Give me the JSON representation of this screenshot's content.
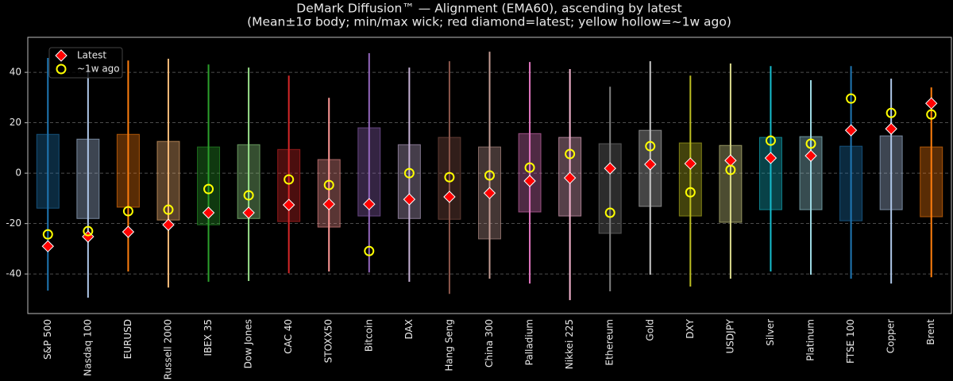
{
  "chart_data": {
    "type": "box",
    "title": "DeMark Diffusion™ — Alignment (EMA60), ascending by latest",
    "subtitle": "(Mean±1σ body; min/max wick; red diamond=latest; yellow hollow=~1w ago)",
    "categories": [
      "S&P 500",
      "Nasdaq 100",
      "EURUSD",
      "Russell 2000",
      "IBEX 35",
      "Dow Jones",
      "CAC 40",
      "STOXX50",
      "Bitcoin",
      "DAX",
      "Hang Seng",
      "China 300",
      "Palladium",
      "Nikkei 225",
      "Ethereum",
      "Gold",
      "DXY",
      "USDJPY",
      "Silver",
      "Platinum",
      "FTSE 100",
      "Copper",
      "Brent"
    ],
    "colors": [
      "#1f77b4",
      "#aec7e8",
      "#ff7f0e",
      "#ffbb78",
      "#2ca02c",
      "#98df8a",
      "#d62728",
      "#ff9896",
      "#9467bd",
      "#c5b0d5",
      "#8c564b",
      "#c49c94",
      "#e377c2",
      "#f7b6d2",
      "#7f7f7f",
      "#c7c7c7",
      "#bcbd22",
      "#dbdb8d",
      "#17becf",
      "#9edae5",
      "#1f77b4",
      "#aec7e8",
      "#ff7f0e"
    ],
    "body_high": [
      15.4,
      13.5,
      15.4,
      12.6,
      10.4,
      11.3,
      9.4,
      5.4,
      18,
      11.3,
      14.2,
      10.4,
      15.7,
      14.2,
      11.7,
      17,
      12,
      11,
      14.2,
      14.5,
      10.7,
      14.8,
      10.4
    ],
    "body_low": [
      -13.9,
      -18,
      -13.5,
      -18.6,
      -20.5,
      -18,
      -19.2,
      -21.4,
      -17,
      -18,
      -18.3,
      -26.1,
      -15.4,
      -17,
      -23.9,
      -13.2,
      -17,
      -19.5,
      -14.5,
      -14.5,
      -18.9,
      -14.5,
      -17.3
    ],
    "max": [
      45.7,
      41.3,
      44.7,
      45.4,
      43.1,
      41.9,
      38.7,
      29.9,
      47.6,
      41.9,
      44.4,
      48.2,
      44.1,
      41.3,
      34.3,
      44.4,
      38.7,
      43.5,
      42.5,
      36.9,
      42.5,
      37.5,
      34
    ],
    "min": [
      -46.6,
      -49.4,
      -39,
      -45.4,
      -43.1,
      -42.8,
      -39.7,
      -39,
      -39.4,
      -43.1,
      -47.9,
      -41.9,
      -43.8,
      -50.4,
      -46.9,
      -40.3,
      -45,
      -41.9,
      -39,
      -40.3,
      -41.9,
      -43.8,
      -41.3
    ],
    "series": [
      {
        "name": "Latest",
        "color": "#ff0000",
        "values": [
          -29,
          -25.2,
          -23.3,
          -20.5,
          -15.7,
          -15.7,
          -12.6,
          -12.3,
          -12.3,
          -10.4,
          -9.4,
          -7.9,
          -3.1,
          -1.9,
          1.9,
          3.5,
          3.8,
          5,
          6,
          6.9,
          17,
          17.6,
          27.7
        ]
      },
      {
        "name": "~1w ago",
        "color": "#ffff00",
        "values": [
          -24.3,
          -23,
          -15.1,
          -14.5,
          -6.3,
          -8.8,
          -2.5,
          -4.7,
          -30.9,
          0,
          -1.6,
          -0.9,
          2.2,
          7.6,
          -15.7,
          10.7,
          -7.6,
          1.3,
          12.9,
          11.7,
          29.6,
          23.9,
          23.3
        ]
      }
    ],
    "ylim": [
      -55.7,
      53.9
    ],
    "yticks": [
      -40,
      -20,
      0,
      20,
      40
    ],
    "grid": true,
    "legend": "upper left"
  }
}
